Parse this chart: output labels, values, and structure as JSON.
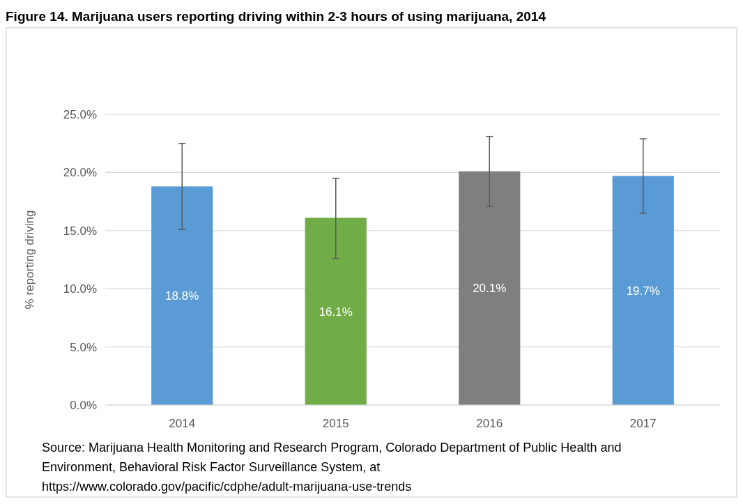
{
  "chart_data": {
    "type": "bar",
    "title": "Figure 14. Marijuana users reporting driving within 2-3 hours of using marijuana, 2014",
    "ylabel": "% reporting driving",
    "categories": [
      "2014",
      "2015",
      "2016",
      "2017"
    ],
    "values": [
      18.8,
      16.1,
      20.1,
      19.7
    ],
    "colors": [
      "#5b9bd5",
      "#70ad47",
      "#7f7f7f",
      "#5b9bd5"
    ],
    "errors": [
      [
        15.1,
        22.5
      ],
      [
        12.6,
        19.5
      ],
      [
        17.1,
        23.1
      ],
      [
        16.5,
        22.9
      ]
    ],
    "value_labels": [
      "18.8%",
      "16.1%",
      "20.1%",
      "19.7%"
    ],
    "ylim": [
      0,
      25
    ],
    "yticks": [
      {
        "value": 0,
        "label": "0.0%"
      },
      {
        "value": 5,
        "label": "5.0%"
      },
      {
        "value": 10,
        "label": "10.0%"
      },
      {
        "value": 15,
        "label": "15.0%"
      },
      {
        "value": 20,
        "label": "20.0%"
      },
      {
        "value": 25,
        "label": "25.0%"
      }
    ],
    "grid": "y",
    "annotations": [
      "Source: Marijuana Health Monitoring and Research Program, Colorado Department of Public Health and Environment, Behavioral Risk Factor Surveillance System, at https://www.colorado.gov/pacific/cdphe/adult-marijuana-use-trends"
    ]
  }
}
